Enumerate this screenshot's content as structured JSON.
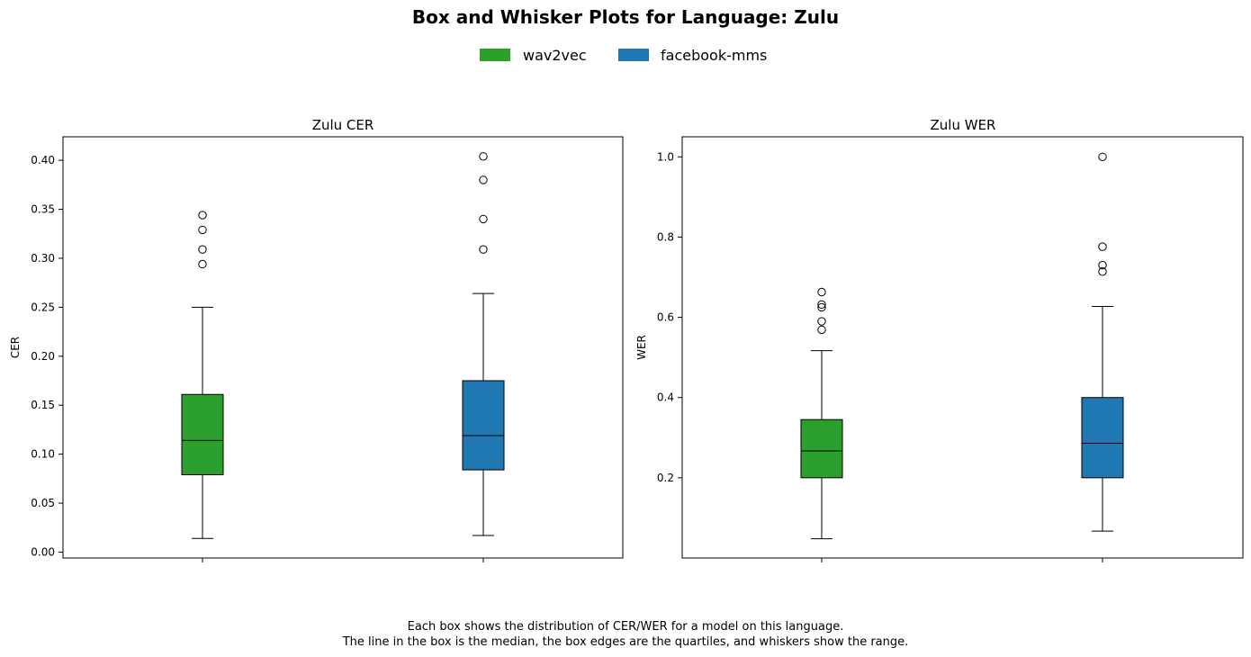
{
  "title": "Box and Whisker Plots for Language: Zulu",
  "legend": [
    {
      "label": "wav2vec",
      "color": "#2ca02c"
    },
    {
      "label": "facebook-mms",
      "color": "#1f77b4"
    }
  ],
  "caption_lines": [
    "Each box shows the distribution of CER/WER for a model on this language.",
    "The line in the box is the median, the box edges are the quartiles, and whiskers show the range."
  ],
  "chart_data": [
    {
      "type": "box",
      "title": "Zulu CER",
      "xlabel": "",
      "ylabel": "CER",
      "ylim": [
        -0.006,
        0.424
      ],
      "yticks": [
        0.0,
        0.05,
        0.1,
        0.15,
        0.2,
        0.25,
        0.3,
        0.35,
        0.4
      ],
      "tick_labels": [
        "0.00",
        "0.05",
        "0.10",
        "0.15",
        "0.20",
        "0.25",
        "0.30",
        "0.35",
        "0.40"
      ],
      "grid": false,
      "series": [
        {
          "model": "wav2vec",
          "color": "#2ca02c",
          "whisker_low": 0.014,
          "q1": 0.079,
          "median": 0.114,
          "q3": 0.161,
          "whisker_high": 0.25,
          "outliers": [
            0.294,
            0.309,
            0.329,
            0.344
          ]
        },
        {
          "model": "facebook-mms",
          "color": "#1f77b4",
          "whisker_low": 0.017,
          "q1": 0.084,
          "median": 0.119,
          "q3": 0.175,
          "whisker_high": 0.264,
          "outliers": [
            0.309,
            0.34,
            0.38,
            0.404
          ]
        }
      ]
    },
    {
      "type": "box",
      "title": "Zulu WER",
      "xlabel": "",
      "ylabel": "WER",
      "ylim": [
        0.0,
        1.05
      ],
      "yticks": [
        0.2,
        0.4,
        0.6,
        0.8,
        1.0
      ],
      "tick_labels": [
        "0.2",
        "0.4",
        "0.6",
        "0.8",
        "1.0"
      ],
      "grid": false,
      "series": [
        {
          "model": "wav2vec",
          "color": "#2ca02c",
          "whisker_low": 0.048,
          "q1": 0.2,
          "median": 0.267,
          "q3": 0.345,
          "whisker_high": 0.517,
          "outliers": [
            0.569,
            0.59,
            0.625,
            0.632,
            0.663
          ]
        },
        {
          "model": "facebook-mms",
          "color": "#1f77b4",
          "whisker_low": 0.067,
          "q1": 0.2,
          "median": 0.286,
          "q3": 0.4,
          "whisker_high": 0.627,
          "outliers": [
            0.714,
            0.73,
            0.776,
            1.0
          ]
        }
      ]
    }
  ]
}
